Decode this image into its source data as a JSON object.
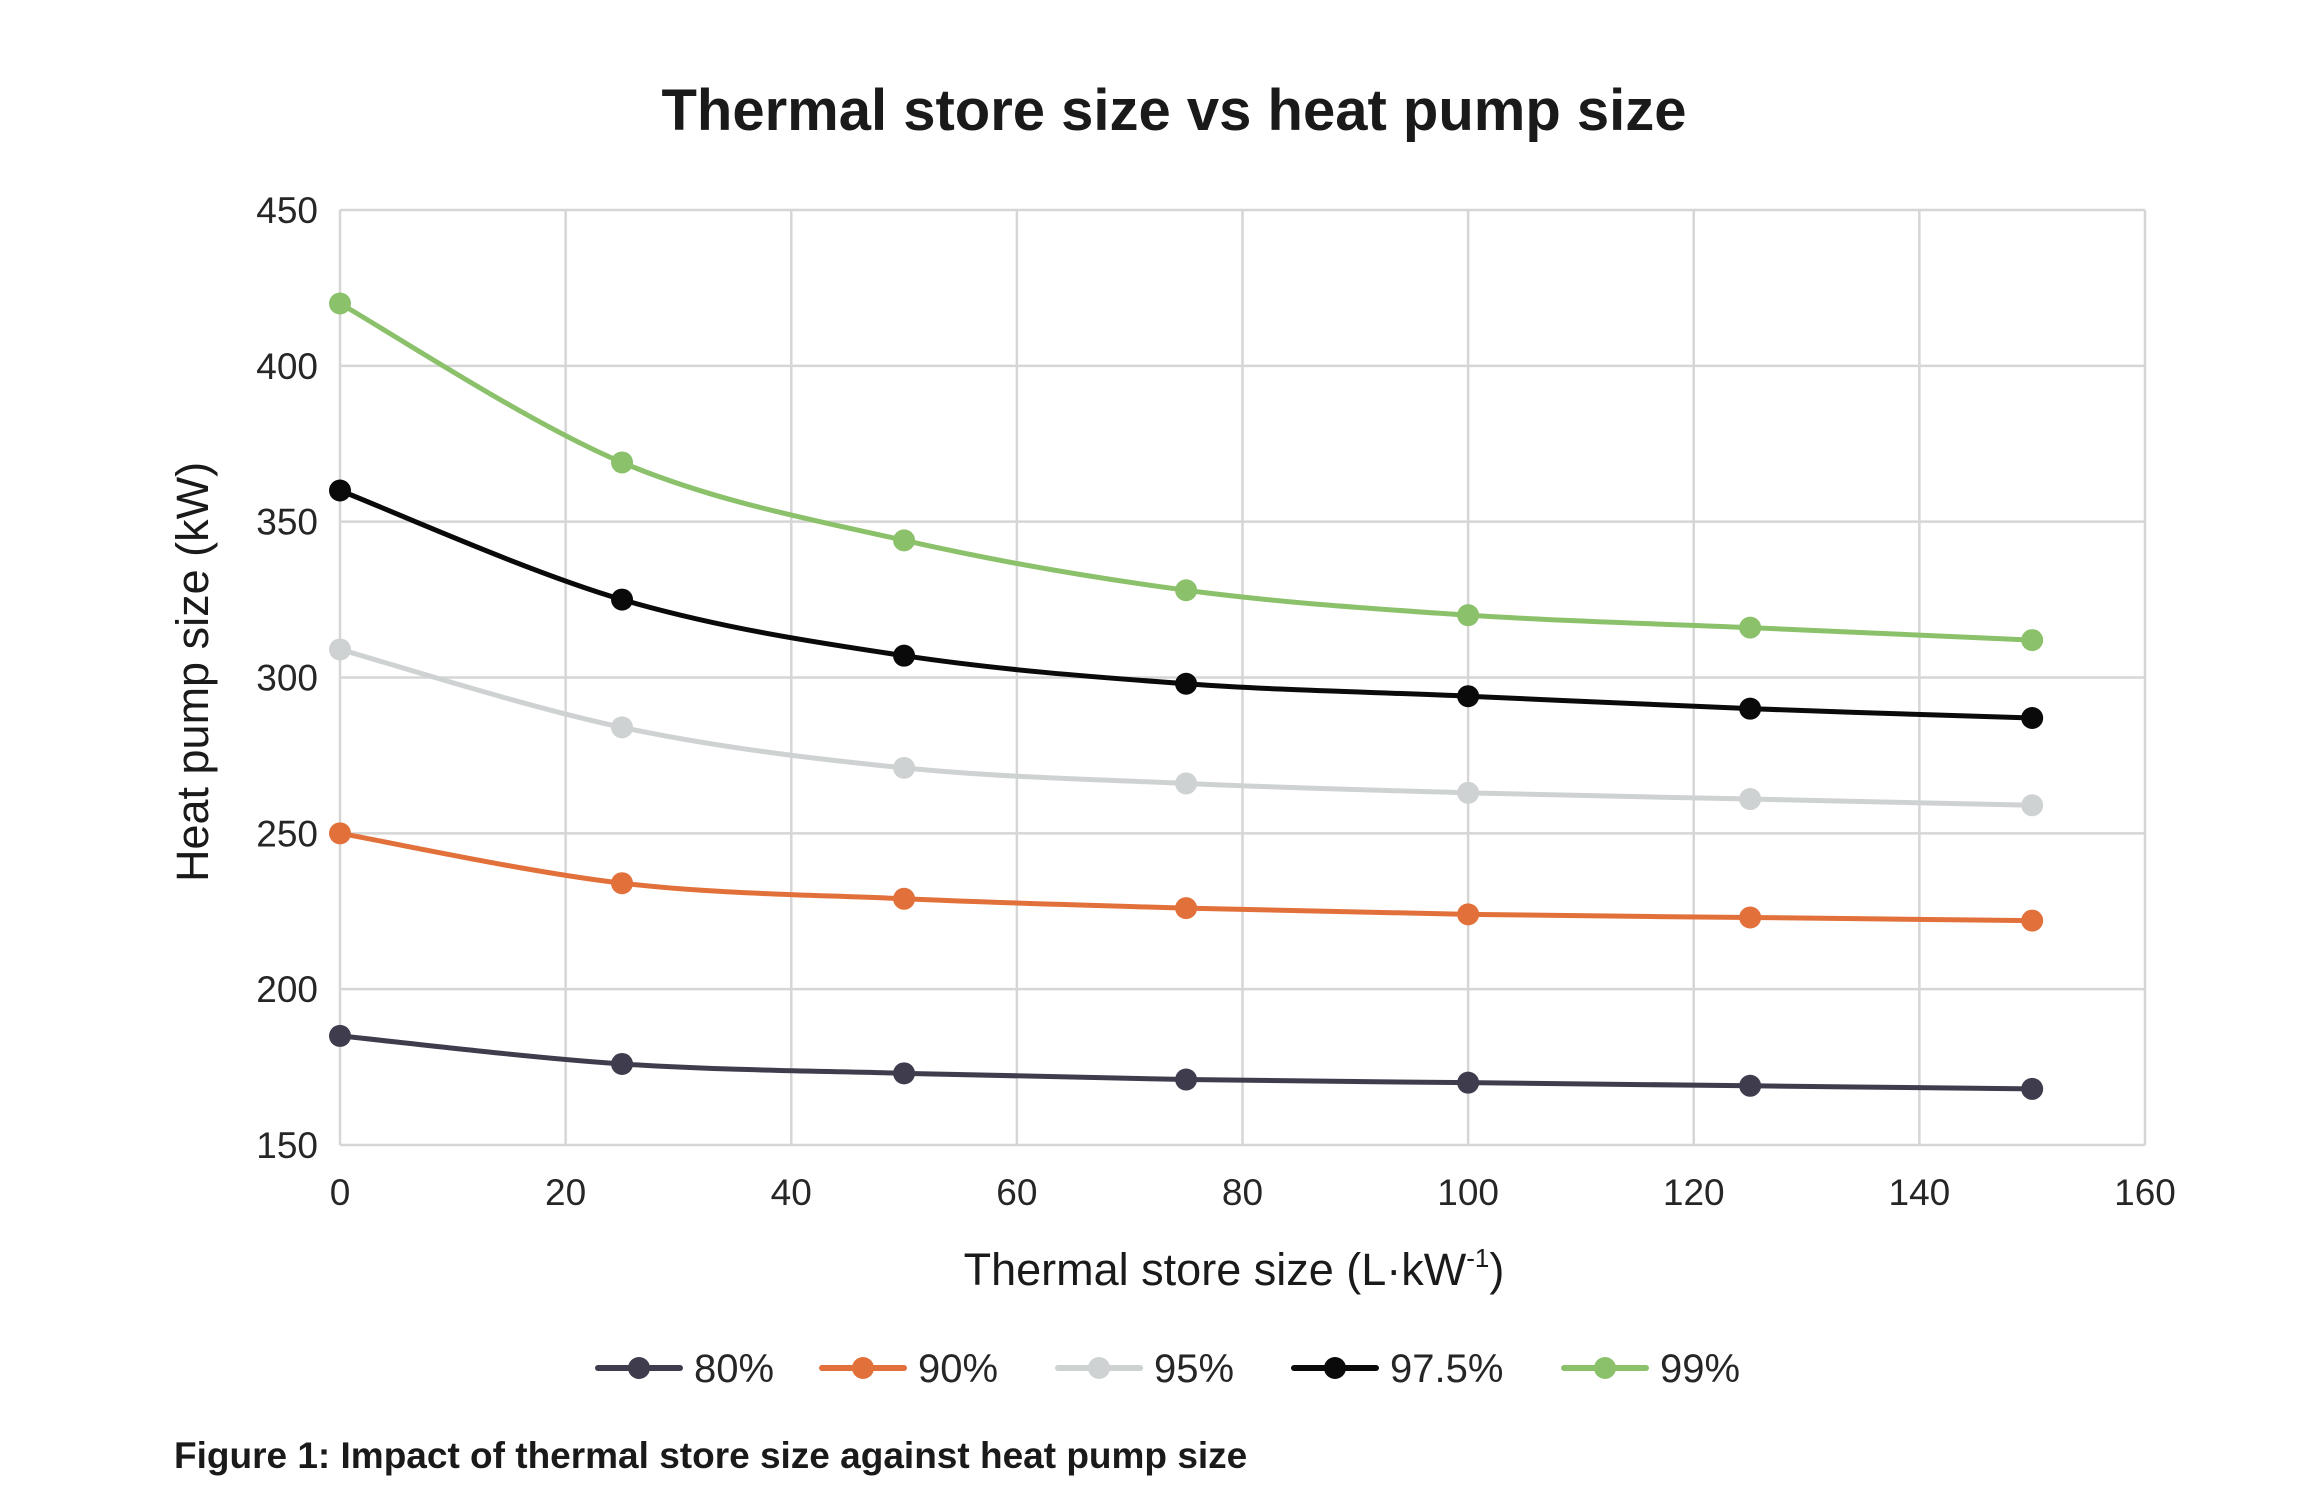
{
  "chart_data": {
    "type": "line",
    "title": "Thermal store size vs heat pump size",
    "xlabel": "Thermal store size (L·kW",
    "xlabel_sup": "-1",
    "xlabel_end": ")",
    "ylabel": "Heat pump size (kW)",
    "xlim": [
      0,
      160
    ],
    "ylim": [
      150,
      450
    ],
    "x_ticks": [
      0,
      20,
      40,
      60,
      80,
      100,
      120,
      140,
      160
    ],
    "y_ticks": [
      150,
      200,
      250,
      300,
      350,
      400,
      450
    ],
    "grid": true,
    "legend_position": "bottom",
    "x": [
      0,
      25,
      50,
      75,
      100,
      125,
      150
    ],
    "series": [
      {
        "name": "80%",
        "color": "#3f3d4d",
        "values": [
          185,
          176,
          173,
          171,
          170,
          169,
          168
        ]
      },
      {
        "name": "90%",
        "color": "#e2703a",
        "values": [
          250,
          234,
          229,
          226,
          224,
          223,
          222
        ]
      },
      {
        "name": "95%",
        "color": "#cfd2d3",
        "values": [
          309,
          284,
          271,
          266,
          263,
          261,
          259
        ]
      },
      {
        "name": "97.5%",
        "color": "#0a0a0a",
        "values": [
          360,
          325,
          307,
          298,
          294,
          290,
          287
        ]
      },
      {
        "name": "99%",
        "color": "#8cc16b",
        "values": [
          420,
          369,
          344,
          328,
          320,
          316,
          312
        ]
      }
    ]
  },
  "caption": "Figure 1: Impact of thermal store size against heat pump size"
}
